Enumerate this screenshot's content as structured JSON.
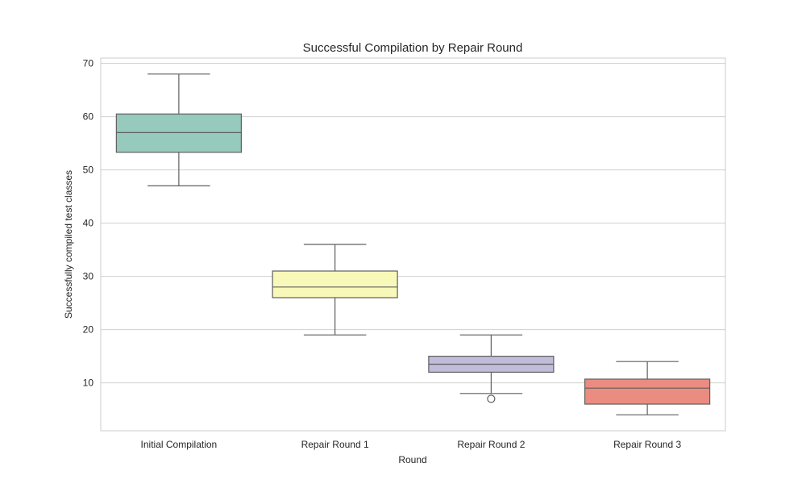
{
  "chart_data": {
    "type": "box",
    "title": "Successful Compilation by Repair Round",
    "xlabel": "Round",
    "ylabel": "Successfully compiled test classes",
    "ylim": [
      1,
      71
    ],
    "yticks": [
      10,
      20,
      30,
      40,
      50,
      60,
      70
    ],
    "grid": "horizontal",
    "categories": [
      "Initial Compilation",
      "Repair Round 1",
      "Repair Round 2",
      "Repair Round 3"
    ],
    "boxes": [
      {
        "category": "Initial Compilation",
        "min": 47,
        "q1": 53.3,
        "median": 57,
        "q3": 60.5,
        "max": 68,
        "outliers": [],
        "color": "#95cabd"
      },
      {
        "category": "Repair Round 1",
        "min": 19,
        "q1": 26,
        "median": 28,
        "q3": 31,
        "max": 36,
        "outliers": [],
        "color": "#f8f8b9"
      },
      {
        "category": "Repair Round 2",
        "min": 8,
        "q1": 12,
        "median": 13.5,
        "q3": 15,
        "max": 19,
        "outliers": [
          7
        ],
        "color": "#c1bcd9"
      },
      {
        "category": "Repair Round 3",
        "min": 4,
        "q1": 6,
        "median": 9,
        "q3": 10.7,
        "max": 14,
        "outliers": [],
        "color": "#eb8c81"
      }
    ]
  }
}
